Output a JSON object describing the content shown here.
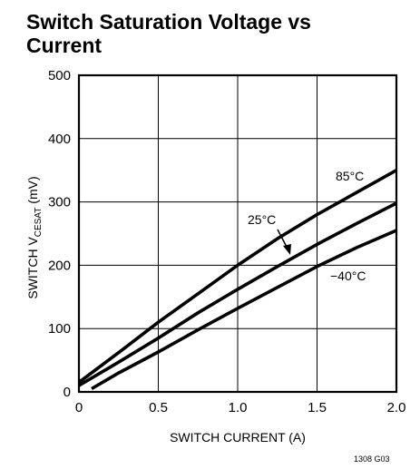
{
  "chart_data": {
    "type": "line",
    "title_line1": "Switch Saturation Voltage vs",
    "title_line2": "Current",
    "xlabel": "SWITCH CURRENT (A)",
    "ylabel_prefix": "SWITCH V",
    "ylabel_sub": "CESAT",
    "ylabel_suffix": " (mV)",
    "xlim": [
      0,
      2.0
    ],
    "ylim": [
      0,
      500
    ],
    "x_ticks": [
      0,
      0.5,
      1.0,
      1.5,
      2.0
    ],
    "x_tick_labels": [
      "0",
      "0.5",
      "1.0",
      "1.5",
      "2.0"
    ],
    "y_ticks": [
      0,
      100,
      200,
      300,
      400,
      500
    ],
    "y_tick_labels": [
      "0",
      "100",
      "200",
      "300",
      "400",
      "500"
    ],
    "grid": true,
    "series": [
      {
        "name": "85°C",
        "x": [
          0,
          0.25,
          0.5,
          0.75,
          1.0,
          1.25,
          1.5,
          1.75,
          2.0
        ],
        "values": [
          15,
          62,
          110,
          155,
          200,
          242,
          280,
          315,
          350
        ]
      },
      {
        "name": "25°C",
        "x": [
          0,
          0.25,
          0.5,
          0.75,
          1.0,
          1.25,
          1.5,
          1.75,
          2.0
        ],
        "values": [
          10,
          47,
          85,
          125,
          162,
          198,
          233,
          266,
          298
        ]
      },
      {
        "name": "−40°C",
        "x": [
          0.08,
          0.25,
          0.5,
          0.75,
          1.0,
          1.25,
          1.5,
          1.75,
          2.0
        ],
        "values": [
          5,
          30,
          63,
          98,
          132,
          165,
          198,
          228,
          255
        ]
      }
    ]
  },
  "figure_id": "1308 G03",
  "colors": {
    "line": "#000000",
    "grid": "#000000",
    "background": "#ffffff"
  }
}
